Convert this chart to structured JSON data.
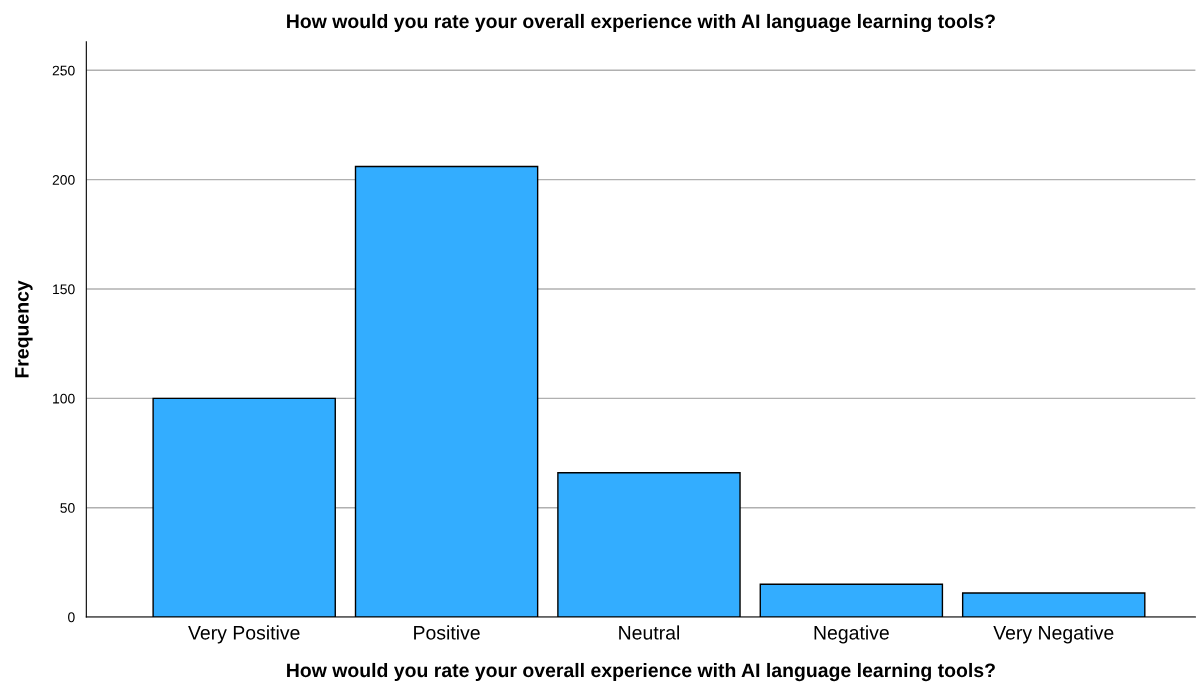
{
  "chart_data": {
    "type": "bar",
    "title": "How would you rate your overall experience with AI language learning tools?",
    "xlabel": "How would you rate your overall experience with AI language learning tools?",
    "ylabel": "Frequency",
    "categories": [
      "Very Positive",
      "Positive",
      "Neutral",
      "Negative",
      "Very Negative"
    ],
    "values": [
      100,
      206,
      66,
      15,
      11
    ],
    "color": "#33adff",
    "ylim": [
      0,
      263
    ],
    "yticks": [
      0,
      50,
      100,
      150,
      200,
      250
    ],
    "grid": "y"
  }
}
